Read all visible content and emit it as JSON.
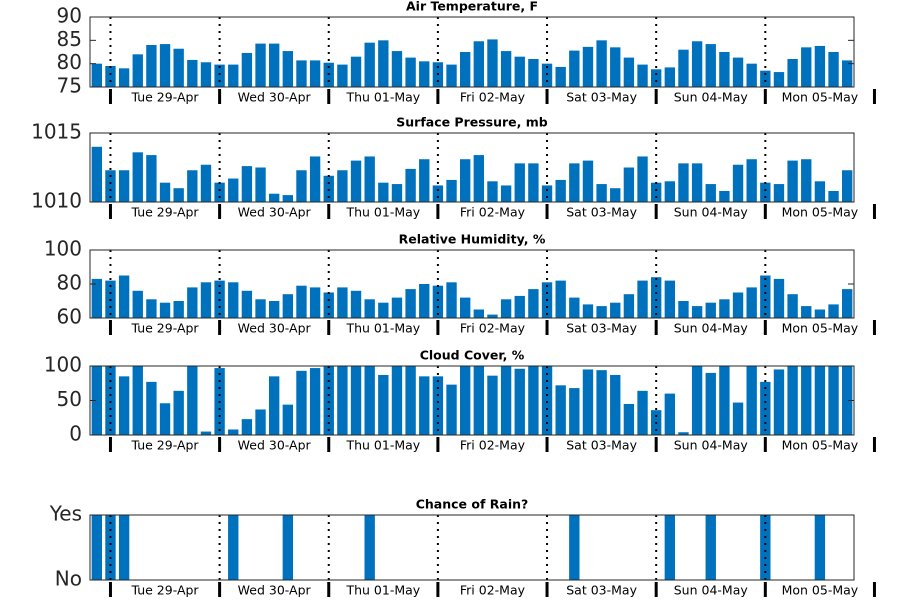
{
  "chart_data": [
    {
      "type": "bar",
      "title": "Air Temperature, F",
      "color": "#0072bd",
      "categories": [
        null,
        null,
        null,
        null,
        null,
        "Tue 29-Apr",
        null,
        null,
        null,
        null,
        null,
        null,
        null,
        "Wed 30-Apr",
        null,
        null,
        null,
        null,
        null,
        null,
        null,
        "Thu 01-May",
        null,
        null,
        null,
        null,
        null,
        null,
        null,
        "Fri 02-May",
        null,
        null,
        null,
        null,
        null,
        null,
        null,
        "Sat 03-May",
        null,
        null,
        null,
        null,
        null,
        null,
        null,
        "Sun 04-May",
        null,
        null,
        null,
        null,
        null,
        null,
        null,
        "Mon 05-May",
        null,
        null
      ],
      "values": [
        80,
        79.5,
        79,
        82,
        84,
        84.2,
        83.2,
        80.8,
        80.3,
        79.8,
        79.8,
        82.3,
        84.3,
        84.3,
        82.7,
        80.7,
        80.7,
        80.2,
        79.8,
        81.5,
        84.5,
        85,
        82.7,
        81.3,
        80.5,
        80.3,
        79.8,
        82.5,
        84.8,
        85.2,
        82.7,
        81.5,
        81,
        80,
        79.3,
        82.8,
        83.6,
        85,
        83.5,
        81.3,
        79.8,
        78.8,
        79.2,
        83,
        84.8,
        84.2,
        82.5,
        81.3,
        80,
        78.5,
        78.2,
        81,
        83.5,
        83.8,
        82.5,
        80.7
      ],
      "ylim": [
        75,
        90
      ],
      "yticks": [
        75,
        80,
        85,
        90
      ]
    },
    {
      "type": "bar",
      "title": "Surface Pressure, mb",
      "color": "#0072bd",
      "categories": [
        null,
        null,
        null,
        null,
        null,
        "Tue 29-Apr",
        null,
        null,
        null,
        null,
        null,
        null,
        null,
        "Wed 30-Apr",
        null,
        null,
        null,
        null,
        null,
        null,
        null,
        "Thu 01-May",
        null,
        null,
        null,
        null,
        null,
        null,
        null,
        "Fri 02-May",
        null,
        null,
        null,
        null,
        null,
        null,
        null,
        "Sat 03-May",
        null,
        null,
        null,
        null,
        null,
        null,
        null,
        "Sun 04-May",
        null,
        null,
        null,
        null,
        null,
        null,
        null,
        "Mon 05-May",
        null,
        null
      ],
      "values": [
        1014,
        1012.3,
        1012.3,
        1013.6,
        1013.4,
        1011.4,
        1011,
        1012.3,
        1012.7,
        1011.4,
        1011.7,
        1012.6,
        1012.5,
        1010.6,
        1010.5,
        1012.3,
        1013.3,
        1011.9,
        1012.3,
        1013,
        1013.3,
        1011.4,
        1011.3,
        1012.4,
        1013.1,
        1011.2,
        1011.6,
        1013.1,
        1013.4,
        1011.5,
        1011.2,
        1012.8,
        1012.8,
        1011.2,
        1011.6,
        1012.8,
        1013,
        1011.3,
        1011,
        1012.5,
        1013.3,
        1011.4,
        1011.5,
        1012.8,
        1012.8,
        1011.3,
        1010.8,
        1012.7,
        1013.1,
        1011.4,
        1011.3,
        1013,
        1013.1,
        1011.5,
        1010.8,
        1012.3
      ],
      "ylim": [
        1010,
        1015
      ],
      "yticks": [
        1010,
        1015
      ]
    },
    {
      "type": "bar",
      "title": "Relative Humidity, %",
      "color": "#0072bd",
      "categories": [
        null,
        null,
        null,
        null,
        null,
        "Tue 29-Apr",
        null,
        null,
        null,
        null,
        null,
        null,
        null,
        "Wed 30-Apr",
        null,
        null,
        null,
        null,
        null,
        null,
        null,
        "Thu 01-May",
        null,
        null,
        null,
        null,
        null,
        null,
        null,
        "Fri 02-May",
        null,
        null,
        null,
        null,
        null,
        null,
        null,
        "Sat 03-May",
        null,
        null,
        null,
        null,
        null,
        null,
        null,
        "Sun 04-May",
        null,
        null,
        null,
        null,
        null,
        null,
        null,
        "Mon 05-May",
        null,
        null
      ],
      "values": [
        83,
        82,
        85,
        76,
        71,
        69,
        70,
        78,
        81,
        82,
        81,
        76,
        71,
        70,
        74,
        79,
        78,
        75,
        78,
        76,
        71,
        69,
        72,
        77,
        80,
        79,
        81,
        72,
        65,
        62,
        71,
        73,
        77,
        81,
        82,
        72,
        68,
        67,
        69,
        74,
        82,
        84,
        82,
        70,
        67,
        69,
        71,
        75,
        78,
        85,
        83,
        74,
        67,
        65,
        68,
        77
      ],
      "ylim": [
        60,
        100
      ],
      "yticks": [
        60,
        80,
        100
      ]
    },
    {
      "type": "bar",
      "title": "Cloud Cover, %",
      "color": "#0072bd",
      "categories": [
        null,
        null,
        null,
        null,
        null,
        "Tue 29-Apr",
        null,
        null,
        null,
        null,
        null,
        null,
        null,
        "Wed 30-Apr",
        null,
        null,
        null,
        null,
        null,
        null,
        null,
        "Thu 01-May",
        null,
        null,
        null,
        null,
        null,
        null,
        null,
        "Fri 02-May",
        null,
        null,
        null,
        null,
        null,
        null,
        null,
        "Sat 03-May",
        null,
        null,
        null,
        null,
        null,
        null,
        null,
        "Sun 04-May",
        null,
        null,
        null,
        null,
        null,
        null,
        null,
        "Mon 05-May",
        null,
        null
      ],
      "values": [
        100,
        100,
        85,
        100,
        77,
        46,
        64,
        100,
        5,
        97,
        8,
        23,
        37,
        85,
        44,
        93,
        97,
        100,
        100,
        100,
        100,
        87,
        100,
        100,
        85,
        85,
        73,
        100,
        100,
        86,
        100,
        96,
        100,
        100,
        72,
        68,
        95,
        94,
        87,
        45,
        64,
        36,
        60,
        4,
        100,
        90,
        100,
        47,
        100,
        77,
        95,
        100,
        100,
        100,
        100,
        100
      ],
      "ylim": [
        0,
        100
      ],
      "yticks": [
        0,
        50,
        100
      ]
    },
    {
      "type": "bar",
      "title": "Chance of Rain?",
      "color": "#0072bd",
      "categories": [
        null,
        null,
        null,
        null,
        null,
        "Tue 29-Apr",
        null,
        null,
        null,
        null,
        null,
        null,
        null,
        "Wed 30-Apr",
        null,
        null,
        null,
        null,
        null,
        null,
        null,
        "Thu 01-May",
        null,
        null,
        null,
        null,
        null,
        null,
        null,
        "Fri 02-May",
        null,
        null,
        null,
        null,
        null,
        null,
        null,
        "Sat 03-May",
        null,
        null,
        null,
        null,
        null,
        null,
        null,
        "Sun 04-May",
        null,
        null,
        null,
        null,
        null,
        null,
        null,
        "Mon 05-May",
        null,
        null
      ],
      "values": [
        1,
        1,
        1,
        0,
        0,
        0,
        0,
        0,
        0,
        0,
        1,
        0,
        0,
        0,
        1,
        0,
        0,
        0,
        0,
        0,
        1,
        0,
        0,
        0,
        0,
        0,
        0,
        0,
        0,
        0,
        0,
        0,
        0,
        0,
        0,
        1,
        0,
        0,
        0,
        0,
        0,
        0,
        1,
        0,
        0,
        1,
        0,
        0,
        0,
        1,
        0,
        0,
        0,
        1,
        0,
        0
      ],
      "ylim": [
        0,
        1
      ],
      "yticks": [
        {
          "value": 0,
          "label": "No"
        },
        {
          "value": 1,
          "label": "Yes"
        }
      ]
    }
  ]
}
